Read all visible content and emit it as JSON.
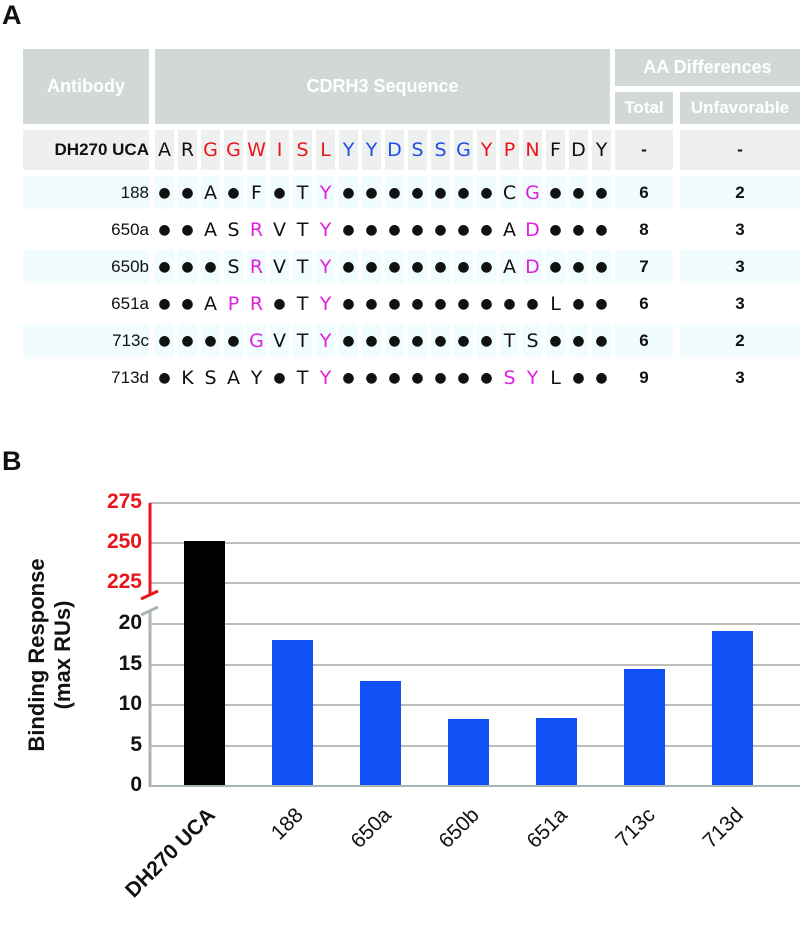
{
  "panel_a": {
    "label": "A",
    "headers": {
      "antibody": "Antibody",
      "sequence": "CDRH3 Sequence",
      "aa_differences": "AA Differences",
      "total": "Total",
      "unfavorable": "Unfavorable"
    },
    "colors": {
      "black": "#111111",
      "red": "#e8161c",
      "blue": "#1f4fe0",
      "magenta": "#e020e0",
      "header_bg": "#d2d8d8",
      "ref_row_bg": "#eef0f0",
      "band_bg": "#f0fcfd"
    },
    "reference": {
      "name": "DH270 UCA",
      "residues": [
        {
          "aa": "A",
          "color": "black"
        },
        {
          "aa": "R",
          "color": "black"
        },
        {
          "aa": "G",
          "color": "red"
        },
        {
          "aa": "G",
          "color": "red"
        },
        {
          "aa": "W",
          "color": "red"
        },
        {
          "aa": "I",
          "color": "red"
        },
        {
          "aa": "S",
          "color": "red"
        },
        {
          "aa": "L",
          "color": "red"
        },
        {
          "aa": "Y",
          "color": "blue"
        },
        {
          "aa": "Y",
          "color": "blue"
        },
        {
          "aa": "D",
          "color": "blue"
        },
        {
          "aa": "S",
          "color": "blue"
        },
        {
          "aa": "S",
          "color": "blue"
        },
        {
          "aa": "G",
          "color": "blue"
        },
        {
          "aa": "Y",
          "color": "red"
        },
        {
          "aa": "P",
          "color": "red"
        },
        {
          "aa": "N",
          "color": "red"
        },
        {
          "aa": "F",
          "color": "black"
        },
        {
          "aa": "D",
          "color": "black"
        },
        {
          "aa": "Y",
          "color": "black"
        }
      ],
      "total": "-",
      "unfavorable": "-"
    },
    "rows": [
      {
        "name": "188",
        "seq": "••A•F•TY•••••••CG•••",
        "magenta": [
          7,
          16
        ],
        "total": "6",
        "unfavorable": "2",
        "band": true
      },
      {
        "name": "650a",
        "seq": "••ASRVTY•••••••AD•••",
        "magenta": [
          4,
          7,
          16
        ],
        "total": "8",
        "unfavorable": "3",
        "band": false
      },
      {
        "name": "650b",
        "seq": "•••SRVTY•••••••AD•••",
        "magenta": [
          4,
          7,
          16
        ],
        "total": "7",
        "unfavorable": "3",
        "band": true
      },
      {
        "name": "651a",
        "seq": "••APR•TY•••••••••L••",
        "magenta": [
          3,
          4,
          7
        ],
        "total": "6",
        "unfavorable": "3",
        "band": false
      },
      {
        "name": "713c",
        "seq": "••••GVTY•••••••TS•••",
        "magenta": [
          4,
          7
        ],
        "total": "6",
        "unfavorable": "2",
        "band": true
      },
      {
        "name": "713d",
        "seq": "•KSAY•TY•••••••SYL••",
        "magenta": [
          7,
          15,
          16
        ],
        "total": "9",
        "unfavorable": "3",
        "band": false
      }
    ]
  },
  "panel_b": {
    "label": "B"
  },
  "chart_data": {
    "type": "bar",
    "title": "",
    "xlabel": "",
    "ylabel": "Binding Response (max RUs)",
    "ylabel_lines": [
      "Binding Response",
      "(max RUs)"
    ],
    "categories": [
      "DH270 UCA",
      "188",
      "650a",
      "650b",
      "651a",
      "713c",
      "713d"
    ],
    "values": [
      251,
      18,
      13,
      8.3,
      8.4,
      14.5,
      19.1
    ],
    "bar_colors": [
      "#000000",
      "#1150f5",
      "#1150f5",
      "#1150f5",
      "#1150f5",
      "#1150f5",
      "#1150f5"
    ],
    "broken_axis": true,
    "upper_segment": {
      "ylim": [
        220,
        275
      ],
      "ticks": [
        "275",
        "250",
        "225"
      ],
      "tick_color": "#e8161c"
    },
    "lower_segment": {
      "ylim": [
        0,
        20
      ],
      "ticks": [
        "20",
        "15",
        "10",
        "5",
        "0"
      ],
      "tick_color": "#111111"
    },
    "grid": true,
    "legend": "none"
  }
}
